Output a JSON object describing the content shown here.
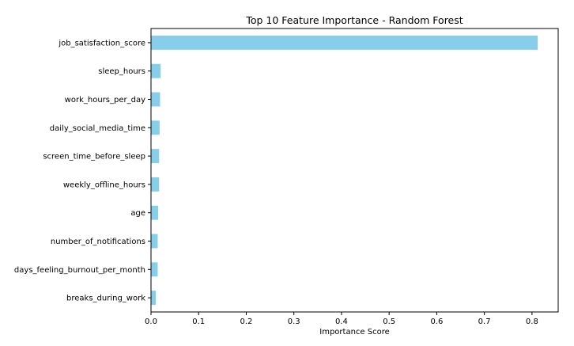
{
  "chart_data": {
    "type": "bar",
    "orientation": "horizontal",
    "title": "Top 10 Feature Importance - Random Forest",
    "xlabel": "Importance Score",
    "ylabel": "",
    "categories": [
      "job_satisfaction_score",
      "sleep_hours",
      "work_hours_per_day",
      "daily_social_media_time",
      "screen_time_before_sleep",
      "weekly_offline_hours",
      "age",
      "number_of_notifications",
      "days_feeling_burnout_per_month",
      "breaks_during_work"
    ],
    "values": [
      0.812,
      0.02,
      0.019,
      0.018,
      0.017,
      0.017,
      0.015,
      0.014,
      0.014,
      0.01
    ],
    "xlim": [
      0,
      0.855
    ],
    "xticks": [
      0.0,
      0.1,
      0.2,
      0.3,
      0.4,
      0.5,
      0.6,
      0.7,
      0.8
    ],
    "xtick_labels": [
      "0.0",
      "0.1",
      "0.2",
      "0.3",
      "0.4",
      "0.5",
      "0.6",
      "0.7",
      "0.8"
    ],
    "grid": false,
    "legend": "none",
    "colors": {
      "bar": "#87ceeb",
      "axis": "#000000",
      "background": "#ffffff"
    }
  }
}
